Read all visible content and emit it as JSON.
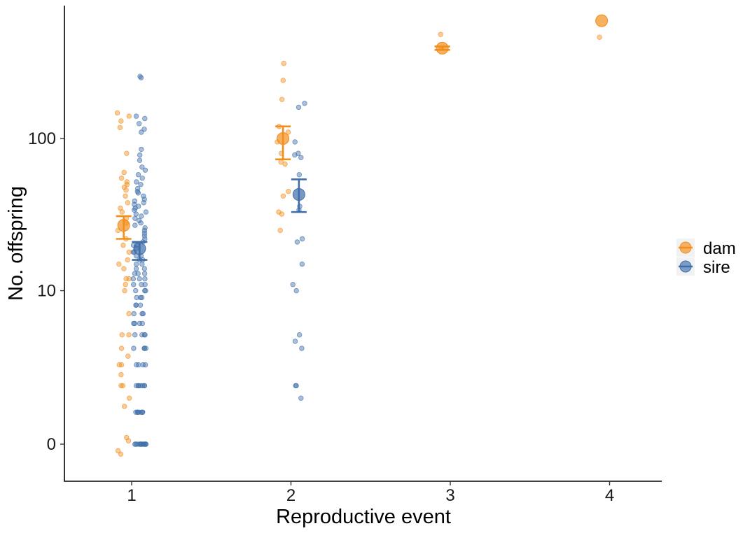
{
  "chart_data": {
    "type": "scatter",
    "xlabel": "Reproductive event",
    "ylabel": "No. offspring",
    "x_ticks": [
      "1",
      "2",
      "3",
      "4"
    ],
    "y_ticks": [
      "0",
      "10",
      "100"
    ],
    "y_scale": "pseudo-log",
    "ylim": [
      -0.4,
      650
    ],
    "xlim": [
      0.55,
      4.3
    ],
    "grid": false,
    "legend_position": "right",
    "series": [
      {
        "name": "dam",
        "color": "#F28E1C",
        "summary": [
          {
            "x": 1,
            "mean": 27,
            "lower": 22,
            "upper": 31
          },
          {
            "x": 2,
            "mean": 100,
            "lower": 73,
            "upper": 120
          },
          {
            "x": 3,
            "mean": 390,
            "lower": 380,
            "upper": 400
          },
          {
            "x": 4,
            "mean": 590,
            "lower": null,
            "upper": null
          }
        ],
        "points": [
          {
            "x": 1,
            "y": 147
          },
          {
            "x": 1,
            "y": 140
          },
          {
            "x": 1,
            "y": 130
          },
          {
            "x": 1,
            "y": 118
          },
          {
            "x": 1,
            "y": 80
          },
          {
            "x": 1,
            "y": 60
          },
          {
            "x": 1,
            "y": 55
          },
          {
            "x": 1,
            "y": 52
          },
          {
            "x": 1,
            "y": 50
          },
          {
            "x": 1,
            "y": 48
          },
          {
            "x": 1,
            "y": 46
          },
          {
            "x": 1,
            "y": 42
          },
          {
            "x": 1,
            "y": 38
          },
          {
            "x": 1,
            "y": 35
          },
          {
            "x": 1,
            "y": 33
          },
          {
            "x": 1,
            "y": 30
          },
          {
            "x": 1,
            "y": 28
          },
          {
            "x": 1,
            "y": 25
          },
          {
            "x": 1,
            "y": 22
          },
          {
            "x": 1,
            "y": 20
          },
          {
            "x": 1,
            "y": 18
          },
          {
            "x": 1,
            "y": 16
          },
          {
            "x": 1,
            "y": 15
          },
          {
            "x": 1,
            "y": 14
          },
          {
            "x": 1,
            "y": 12
          },
          {
            "x": 1,
            "y": 12
          },
          {
            "x": 1,
            "y": 11
          },
          {
            "x": 1,
            "y": 10
          },
          {
            "x": 1,
            "y": 7
          },
          {
            "x": 1,
            "y": 5
          },
          {
            "x": 1,
            "y": 5
          },
          {
            "x": 1,
            "y": 4
          },
          {
            "x": 1,
            "y": 3.5
          },
          {
            "x": 1,
            "y": 3
          },
          {
            "x": 1,
            "y": 3
          },
          {
            "x": 1,
            "y": 2.5
          },
          {
            "x": 1,
            "y": 2
          },
          {
            "x": 1,
            "y": 2
          },
          {
            "x": 1,
            "y": 1.5
          },
          {
            "x": 1,
            "y": 1.2
          },
          {
            "x": 1,
            "y": 0.2
          },
          {
            "x": 1,
            "y": 0.1
          },
          {
            "x": 1,
            "y": -0.2
          },
          {
            "x": 1,
            "y": -0.3
          },
          {
            "x": 2,
            "y": 310
          },
          {
            "x": 2,
            "y": 240
          },
          {
            "x": 2,
            "y": 180
          },
          {
            "x": 2,
            "y": 120
          },
          {
            "x": 2,
            "y": 110
          },
          {
            "x": 2,
            "y": 95
          },
          {
            "x": 2,
            "y": 80
          },
          {
            "x": 2,
            "y": 70
          },
          {
            "x": 2,
            "y": 68
          },
          {
            "x": 2,
            "y": 45
          },
          {
            "x": 2,
            "y": 42
          },
          {
            "x": 2,
            "y": 33
          },
          {
            "x": 2,
            "y": 32
          },
          {
            "x": 2,
            "y": 25
          },
          {
            "x": 3,
            "y": 480
          },
          {
            "x": 3,
            "y": 390
          },
          {
            "x": 4,
            "y": 460
          }
        ]
      },
      {
        "name": "sire",
        "color": "#3E6EAA",
        "summary": [
          {
            "x": 1,
            "mean": 19,
            "lower": 16,
            "upper": 21
          },
          {
            "x": 2,
            "mean": 43,
            "lower": 33,
            "upper": 54
          }
        ],
        "points": [
          {
            "x": 1,
            "y": 255
          },
          {
            "x": 1,
            "y": 250
          },
          {
            "x": 1,
            "y": 140
          },
          {
            "x": 1,
            "y": 135
          },
          {
            "x": 1,
            "y": 125
          },
          {
            "x": 1,
            "y": 115
          },
          {
            "x": 1,
            "y": 110
          },
          {
            "x": 1,
            "y": 85
          },
          {
            "x": 1,
            "y": 78
          },
          {
            "x": 1,
            "y": 72
          },
          {
            "x": 1,
            "y": 65
          },
          {
            "x": 1,
            "y": 62
          },
          {
            "x": 1,
            "y": 58
          },
          {
            "x": 1,
            "y": 55
          },
          {
            "x": 1,
            "y": 52
          },
          {
            "x": 1,
            "y": 50
          },
          {
            "x": 1,
            "y": 47
          },
          {
            "x": 1,
            "y": 45
          },
          {
            "x": 1,
            "y": 44
          },
          {
            "x": 1,
            "y": 42
          },
          {
            "x": 1,
            "y": 40
          },
          {
            "x": 1,
            "y": 39
          },
          {
            "x": 1,
            "y": 38
          },
          {
            "x": 1,
            "y": 37
          },
          {
            "x": 1,
            "y": 36
          },
          {
            "x": 1,
            "y": 35
          },
          {
            "x": 1,
            "y": 34
          },
          {
            "x": 1,
            "y": 33
          },
          {
            "x": 1,
            "y": 32
          },
          {
            "x": 1,
            "y": 31
          },
          {
            "x": 1,
            "y": 30
          },
          {
            "x": 1,
            "y": 29
          },
          {
            "x": 1,
            "y": 28
          },
          {
            "x": 1,
            "y": 27
          },
          {
            "x": 1,
            "y": 26
          },
          {
            "x": 1,
            "y": 25
          },
          {
            "x": 1,
            "y": 24
          },
          {
            "x": 1,
            "y": 23
          },
          {
            "x": 1,
            "y": 22
          },
          {
            "x": 1,
            "y": 21
          },
          {
            "x": 1,
            "y": 20
          },
          {
            "x": 1,
            "y": 20
          },
          {
            "x": 1,
            "y": 19
          },
          {
            "x": 1,
            "y": 18
          },
          {
            "x": 1,
            "y": 18
          },
          {
            "x": 1,
            "y": 17
          },
          {
            "x": 1,
            "y": 17
          },
          {
            "x": 1,
            "y": 16
          },
          {
            "x": 1,
            "y": 16
          },
          {
            "x": 1,
            "y": 15
          },
          {
            "x": 1,
            "y": 15
          },
          {
            "x": 1,
            "y": 14
          },
          {
            "x": 1,
            "y": 14
          },
          {
            "x": 1,
            "y": 13
          },
          {
            "x": 1,
            "y": 13
          },
          {
            "x": 1,
            "y": 13
          },
          {
            "x": 1,
            "y": 12
          },
          {
            "x": 1,
            "y": 12
          },
          {
            "x": 1,
            "y": 12
          },
          {
            "x": 1,
            "y": 11
          },
          {
            "x": 1,
            "y": 11
          },
          {
            "x": 1,
            "y": 11
          },
          {
            "x": 1,
            "y": 10
          },
          {
            "x": 1,
            "y": 10
          },
          {
            "x": 1,
            "y": 10
          },
          {
            "x": 1,
            "y": 9
          },
          {
            "x": 1,
            "y": 9
          },
          {
            "x": 1,
            "y": 9
          },
          {
            "x": 1,
            "y": 8
          },
          {
            "x": 1,
            "y": 8
          },
          {
            "x": 1,
            "y": 8
          },
          {
            "x": 1,
            "y": 7
          },
          {
            "x": 1,
            "y": 7
          },
          {
            "x": 1,
            "y": 7
          },
          {
            "x": 1,
            "y": 6
          },
          {
            "x": 1,
            "y": 6
          },
          {
            "x": 1,
            "y": 6
          },
          {
            "x": 1,
            "y": 6
          },
          {
            "x": 1,
            "y": 5
          },
          {
            "x": 1,
            "y": 5
          },
          {
            "x": 1,
            "y": 5
          },
          {
            "x": 1,
            "y": 5
          },
          {
            "x": 1,
            "y": 4
          },
          {
            "x": 1,
            "y": 4
          },
          {
            "x": 1,
            "y": 4
          },
          {
            "x": 1,
            "y": 4
          },
          {
            "x": 1,
            "y": 3
          },
          {
            "x": 1,
            "y": 3
          },
          {
            "x": 1,
            "y": 3
          },
          {
            "x": 1,
            "y": 3
          },
          {
            "x": 1,
            "y": 2
          },
          {
            "x": 1,
            "y": 2
          },
          {
            "x": 1,
            "y": 2
          },
          {
            "x": 1,
            "y": 2
          },
          {
            "x": 1,
            "y": 2
          },
          {
            "x": 1,
            "y": 2
          },
          {
            "x": 1,
            "y": 2
          },
          {
            "x": 1,
            "y": 1
          },
          {
            "x": 1,
            "y": 1
          },
          {
            "x": 1,
            "y": 1
          },
          {
            "x": 1,
            "y": 1
          },
          {
            "x": 1,
            "y": 1
          },
          {
            "x": 1,
            "y": 1
          },
          {
            "x": 1,
            "y": 1
          },
          {
            "x": 1,
            "y": 0
          },
          {
            "x": 1,
            "y": 0
          },
          {
            "x": 1,
            "y": 0
          },
          {
            "x": 1,
            "y": 0
          },
          {
            "x": 1,
            "y": 0
          },
          {
            "x": 1,
            "y": 0
          },
          {
            "x": 1,
            "y": 0
          },
          {
            "x": 1,
            "y": 0
          },
          {
            "x": 1,
            "y": 0
          },
          {
            "x": 1,
            "y": 0
          },
          {
            "x": 1,
            "y": 0
          },
          {
            "x": 1,
            "y": 0
          },
          {
            "x": 2,
            "y": 170
          },
          {
            "x": 2,
            "y": 160
          },
          {
            "x": 2,
            "y": 95
          },
          {
            "x": 2,
            "y": 80
          },
          {
            "x": 2,
            "y": 78
          },
          {
            "x": 2,
            "y": 75
          },
          {
            "x": 2,
            "y": 58
          },
          {
            "x": 2,
            "y": 36
          },
          {
            "x": 2,
            "y": 34
          },
          {
            "x": 2,
            "y": 22
          },
          {
            "x": 2,
            "y": 21
          },
          {
            "x": 2,
            "y": 15
          },
          {
            "x": 2,
            "y": 11
          },
          {
            "x": 2,
            "y": 10
          },
          {
            "x": 2,
            "y": 5
          },
          {
            "x": 2,
            "y": 4.5
          },
          {
            "x": 2,
            "y": 4
          },
          {
            "x": 2,
            "y": 2
          },
          {
            "x": 2,
            "y": 2
          },
          {
            "x": 2,
            "y": 1.5
          }
        ]
      }
    ]
  }
}
